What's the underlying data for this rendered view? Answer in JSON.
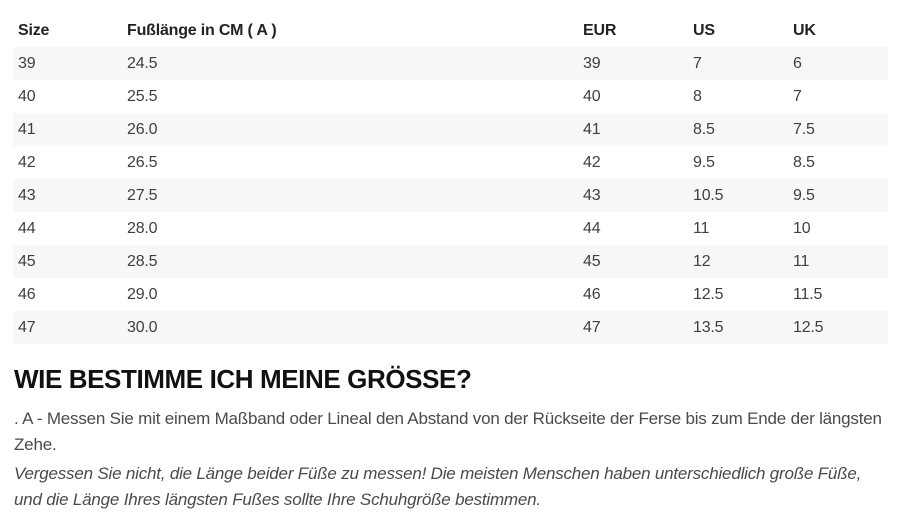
{
  "size_table": {
    "headers": [
      "Size",
      "Fußlänge in CM ( A )",
      "EUR",
      "US",
      "UK"
    ],
    "rows": [
      [
        "39",
        "24.5",
        "39",
        "7",
        "6"
      ],
      [
        "40",
        "25.5",
        "40",
        "8",
        "7"
      ],
      [
        "41",
        "26.0",
        "41",
        "8.5",
        "7.5"
      ],
      [
        "42",
        "26.5",
        "42",
        "9.5",
        "8.5"
      ],
      [
        "43",
        "27.5",
        "43",
        "10.5",
        "9.5"
      ],
      [
        "44",
        "28.0",
        "44",
        "11",
        "10"
      ],
      [
        "45",
        "28.5",
        "45",
        "12",
        "11"
      ],
      [
        "46",
        "29.0",
        "46",
        "12.5",
        "11.5"
      ],
      [
        "47",
        "30.0",
        "47",
        "13.5",
        "12.5"
      ]
    ]
  },
  "guide": {
    "heading": "WIE BESTIMME ICH MEINE GRÖSSE?",
    "measure_instruction": ". A - Messen Sie mit einem Maßband oder Lineal den Abstand von der Rückseite der Ferse bis zum Ende der längsten Zehe.",
    "measure_note": "Vergessen Sie nicht, die Länge beider Füße zu messen! Die meisten Menschen haben unterschiedlich große Füße, und die Länge Ihres längsten Fußes sollte Ihre Schuhgröße bestimmen."
  },
  "colors": {
    "row_stripe": "#f7f7f7",
    "header_text": "#222222",
    "cell_text": "#3f3f3f",
    "heading_text": "#111111",
    "body_text": "#4a4a4a"
  }
}
